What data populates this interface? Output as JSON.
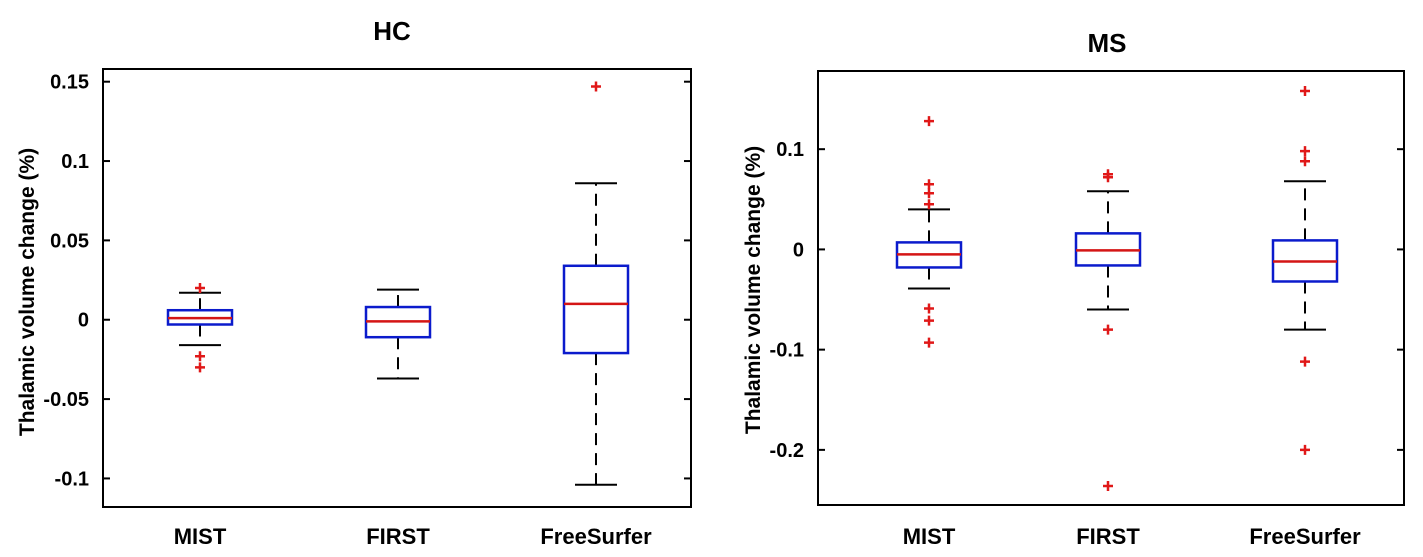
{
  "chart_data": [
    {
      "type": "box",
      "title": "HC",
      "xlabel": "",
      "ylabel": "Thalamic volume change (%)",
      "ylim": [
        -0.118,
        0.158
      ],
      "yticks": [
        -0.1,
        -0.05,
        0,
        0.05,
        0.1,
        0.15
      ],
      "ytick_labels": [
        "-0.1",
        "-0.05",
        "0",
        "0.05",
        "0.1",
        "0.15"
      ],
      "categories": [
        "MIST",
        "FIRST",
        "FreeSurfer"
      ],
      "boxes": [
        {
          "name": "MIST",
          "whisker_low": -0.016,
          "q1": -0.003,
          "median": 0.001,
          "q3": 0.006,
          "whisker_high": 0.017,
          "outliers": [
            0.02,
            -0.023,
            -0.03
          ]
        },
        {
          "name": "FIRST",
          "whisker_low": -0.037,
          "q1": -0.011,
          "median": -0.001,
          "q3": 0.008,
          "whisker_high": 0.019,
          "outliers": []
        },
        {
          "name": "FreeSurfer",
          "whisker_low": -0.104,
          "q1": -0.021,
          "median": 0.01,
          "q3": 0.034,
          "whisker_high": 0.086,
          "outliers": [
            0.147
          ]
        }
      ]
    },
    {
      "type": "box",
      "title": "MS",
      "xlabel": "",
      "ylabel": "Thalamic volume change (%)",
      "ylim": [
        -0.255,
        0.178
      ],
      "yticks": [
        -0.2,
        -0.1,
        0,
        0.1
      ],
      "ytick_labels": [
        "-0.2",
        "-0.1",
        "0",
        "0.1"
      ],
      "categories": [
        "MIST",
        "FIRST",
        "FreeSurfer"
      ],
      "boxes": [
        {
          "name": "MIST",
          "whisker_low": -0.039,
          "q1": -0.018,
          "median": -0.005,
          "q3": 0.007,
          "whisker_high": 0.04,
          "outliers": [
            0.128,
            0.065,
            0.056,
            0.045,
            -0.059,
            -0.071,
            -0.093
          ]
        },
        {
          "name": "FIRST",
          "whisker_low": -0.06,
          "q1": -0.016,
          "median": -0.001,
          "q3": 0.016,
          "whisker_high": 0.058,
          "outliers": [
            0.075,
            0.072,
            -0.08,
            -0.236
          ]
        },
        {
          "name": "FreeSurfer",
          "whisker_low": -0.08,
          "q1": -0.032,
          "median": -0.012,
          "q3": 0.009,
          "whisker_high": 0.068,
          "outliers": [
            0.158,
            0.098,
            0.088,
            -0.112,
            -0.2
          ]
        }
      ]
    }
  ],
  "style": {
    "box_color": "#0b1bcc",
    "median_color": "#d41515",
    "whisker_color": "#000000",
    "outlier_color": "#e01818"
  }
}
